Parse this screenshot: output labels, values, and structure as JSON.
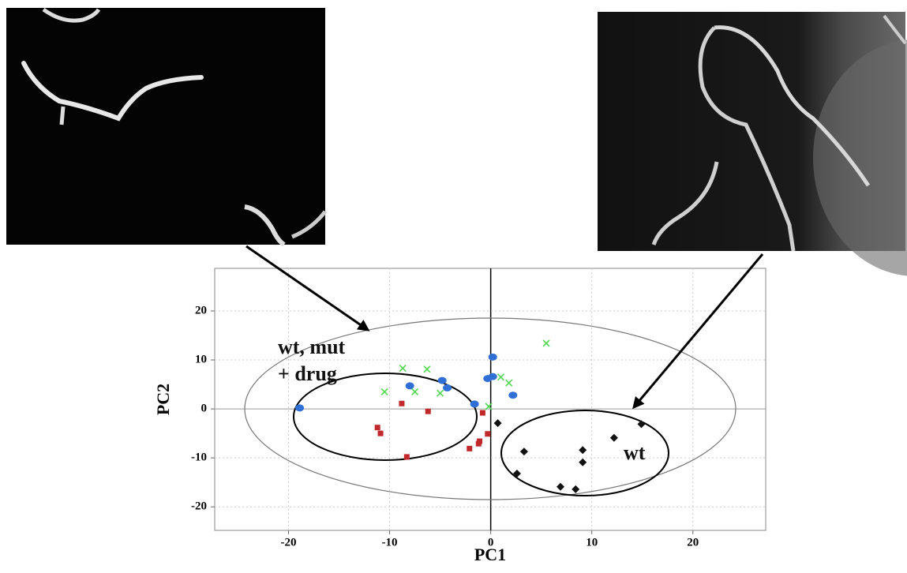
{
  "chart_data": {
    "type": "scatter",
    "xlabel": "PC1",
    "ylabel": "PC2",
    "xlim": [
      -27.3,
      27.2
    ],
    "ylim": [
      -24.8,
      28.7
    ],
    "xticks": [
      -20,
      -10,
      0,
      10,
      20
    ],
    "yticks": [
      -20,
      -10,
      0,
      10,
      20
    ],
    "grid": true,
    "series": [
      {
        "color": "#2f6fd6",
        "marker": "circle",
        "x": [
          -18.9,
          -8.0,
          -4.8,
          -4.3,
          -1.6,
          -0.3,
          0.2,
          0.2,
          2.2
        ],
        "values": [
          0.2,
          4.7,
          5.8,
          4.3,
          1.0,
          6.2,
          10.6,
          6.6,
          2.8
        ]
      },
      {
        "color": "#4fd84f",
        "marker": "x",
        "x": [
          -8.7,
          -6.3,
          -10.5,
          -7.5,
          -5.0,
          -0.2,
          1.0,
          1.8,
          5.5
        ],
        "values": [
          8.3,
          8.1,
          3.5,
          3.5,
          3.2,
          0.5,
          6.5,
          5.3,
          13.4
        ]
      },
      {
        "color": "#c0282a",
        "marker": "square",
        "x": [
          -11.2,
          -10.9,
          -8.8,
          -8.3,
          -6.2,
          -2.1,
          -1.1,
          -1.2,
          -0.8,
          -0.3
        ],
        "values": [
          -3.8,
          -5.0,
          1.1,
          -9.8,
          -0.5,
          -8.1,
          -6.6,
          -7.1,
          -0.8,
          -5.1
        ]
      },
      {
        "color": "#111111",
        "marker": "diamond",
        "x": [
          0.7,
          3.3,
          2.6,
          6.9,
          8.4,
          9.1,
          9.1,
          12.2,
          14.9
        ],
        "values": [
          -2.9,
          -8.7,
          -13.2,
          -15.9,
          -16.4,
          -8.4,
          -10.9,
          -5.9,
          -3.1
        ]
      }
    ],
    "annotations": [
      {
        "lines": [
          "wt, mut",
          "+ drug"
        ]
      },
      {
        "lines": [
          "wt"
        ]
      }
    ]
  }
}
